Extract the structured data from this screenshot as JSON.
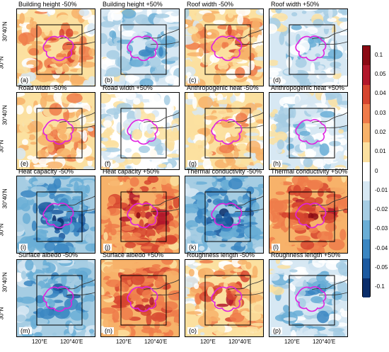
{
  "panels": [
    {
      "title": "Building height -50%",
      "tag": "(a)",
      "intensity": 0.55
    },
    {
      "title": "Building height +50%",
      "tag": "(b)",
      "intensity": -0.45
    },
    {
      "title": "Roof width -50%",
      "tag": "(c)",
      "intensity": 0.45
    },
    {
      "title": "Roof width +50%",
      "tag": "(d)",
      "intensity": -0.3
    },
    {
      "title": "Road width -50%",
      "tag": "(e)",
      "intensity": 0.4
    },
    {
      "title": "Road width +50%",
      "tag": "(f)",
      "intensity": -0.15
    },
    {
      "title": "Anthropogenic heat -50%",
      "tag": "(g)",
      "intensity": 0.3
    },
    {
      "title": "Anthropogenic heat +50%",
      "tag": "(h)",
      "intensity": -0.25
    },
    {
      "title": "Heat capacity -50%",
      "tag": "(i)",
      "intensity": -0.95
    },
    {
      "title": "Heat capacity +50%",
      "tag": "(j)",
      "intensity": 0.95
    },
    {
      "title": "Thermal conductivity -50%",
      "tag": "(k)",
      "intensity": -0.95
    },
    {
      "title": "Thermal conductivity +50%",
      "tag": "(l)",
      "intensity": 0.9
    },
    {
      "title": "Surface albedo -50%",
      "tag": "(m)",
      "intensity": -0.8
    },
    {
      "title": "Surface albedo +50%",
      "tag": "(n)",
      "intensity": 0.85
    },
    {
      "title": "Roughness length -50%",
      "tag": "(o)",
      "intensity": 0.6
    },
    {
      "title": "Roughness length +50%",
      "tag": "(p)",
      "intensity": -0.5
    }
  ],
  "axis": {
    "y_ticks": [
      "30°40'N",
      "30°N"
    ],
    "x_ticks": [
      "120°E",
      "120°40'E"
    ]
  },
  "colorbar": {
    "labels": [
      "0.1",
      "0.05",
      "0.04",
      "0.03",
      "0.02",
      "0.01",
      "0",
      "-0.01",
      "-0.02",
      "-0.03",
      "-0.04",
      "-0.05",
      "-0.1"
    ],
    "colors": [
      "#8b0a14",
      "#b2182b",
      "#d6452f",
      "#ef7b4a",
      "#f7b26a",
      "#fbe0a0",
      "#ffffff",
      "#d7e8f3",
      "#a6cde3",
      "#6aaed6",
      "#3a86c2",
      "#1c5aa0",
      "#0b2e6b"
    ]
  },
  "colors": {
    "outline": "#e020e0",
    "box": "#000000"
  }
}
